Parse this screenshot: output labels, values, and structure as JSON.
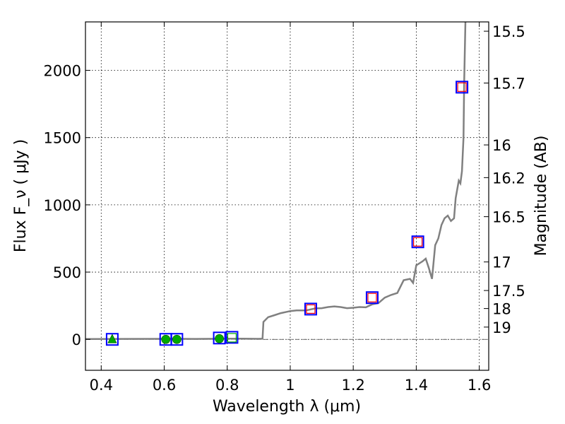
{
  "chart_data": {
    "type": "scatter",
    "xlabel": "Wavelength  λ (μm)",
    "ylabel": "Flux  F_ν  ( μJy )",
    "ylabel2": "Magnitude (AB)",
    "xlim": [
      0.35,
      1.63
    ],
    "ylim": [
      -230,
      2360
    ],
    "grid": true,
    "x_ticks": [
      0.4,
      0.6,
      0.8,
      1.0,
      1.2,
      1.4,
      1.6
    ],
    "x_tick_labels": [
      "0.4",
      "0.6",
      "0.8",
      "1",
      "1.2",
      "1.4",
      "1.6"
    ],
    "y_ticks": [
      0,
      500,
      1000,
      1500,
      2000
    ],
    "y_tick_labels": [
      "0",
      "500",
      "1000",
      "1500",
      "2000"
    ],
    "mag_ticks": [
      15.5,
      15.7,
      16,
      16.2,
      16.5,
      17,
      17.5,
      18,
      19
    ],
    "mag_tick_labels": [
      "15.5",
      "15.7",
      "16",
      "16.2",
      "16.5",
      "17",
      "17.5",
      "18",
      "19"
    ],
    "colors": {
      "model": "#808080",
      "model_box": "#0000ff",
      "observed": "#ff0000",
      "observed_ground": "#00aa00",
      "zero_line": "#404040"
    },
    "series": [
      {
        "type": "line",
        "x": [
          0.35,
          0.45,
          0.6,
          0.7,
          0.8,
          0.85,
          0.9,
          0.912,
          0.915,
          0.93,
          0.95,
          0.97,
          0.99,
          1.0,
          1.02,
          1.05,
          1.08,
          1.1,
          1.12,
          1.14,
          1.16,
          1.18,
          1.2,
          1.22,
          1.24,
          1.26,
          1.28,
          1.3,
          1.32,
          1.34,
          1.36,
          1.38,
          1.39,
          1.4,
          1.42,
          1.43,
          1.44,
          1.45,
          1.46,
          1.47,
          1.48,
          1.49,
          1.5,
          1.51,
          1.52,
          1.525,
          1.535,
          1.54,
          1.545,
          1.55,
          1.552,
          1.556
        ],
        "y": [
          2,
          3,
          4,
          3,
          5,
          5,
          4,
          5,
          130,
          165,
          180,
          195,
          205,
          210,
          215,
          215,
          230,
          232,
          240,
          245,
          240,
          232,
          235,
          240,
          238,
          260,
          270,
          310,
          330,
          345,
          440,
          450,
          420,
          550,
          580,
          600,
          530,
          450,
          700,
          750,
          850,
          900,
          920,
          880,
          900,
          1050,
          1180,
          1160,
          1250,
          1500,
          1900,
          2360
        ]
      },
      {
        "type": "scatter",
        "marker": "open-square",
        "color": "#0000ff",
        "x": [
          0.435,
          0.605,
          0.64,
          0.775,
          0.815,
          1.065,
          1.26,
          1.405,
          1.545
        ],
        "y": [
          0,
          0,
          0,
          10,
          15,
          225,
          310,
          725,
          1875
        ]
      },
      {
        "type": "scatter",
        "marker": "open-square",
        "color": "#ff0000",
        "x": [
          1.065,
          1.26,
          1.405,
          1.545
        ],
        "y": [
          225,
          310,
          725,
          1875
        ]
      },
      {
        "type": "scatter",
        "marker": "triangle",
        "color": "#00aa00",
        "x": [
          0.435
        ],
        "y": [
          0
        ]
      },
      {
        "type": "scatter",
        "marker": "circle",
        "color": "#00aa00",
        "x": [
          0.605,
          0.64,
          0.775
        ],
        "y": [
          0,
          0,
          5
        ]
      },
      {
        "type": "scatter",
        "marker": "open-square",
        "color": "#00aa00",
        "x": [
          0.815
        ],
        "y": [
          12
        ]
      }
    ]
  }
}
